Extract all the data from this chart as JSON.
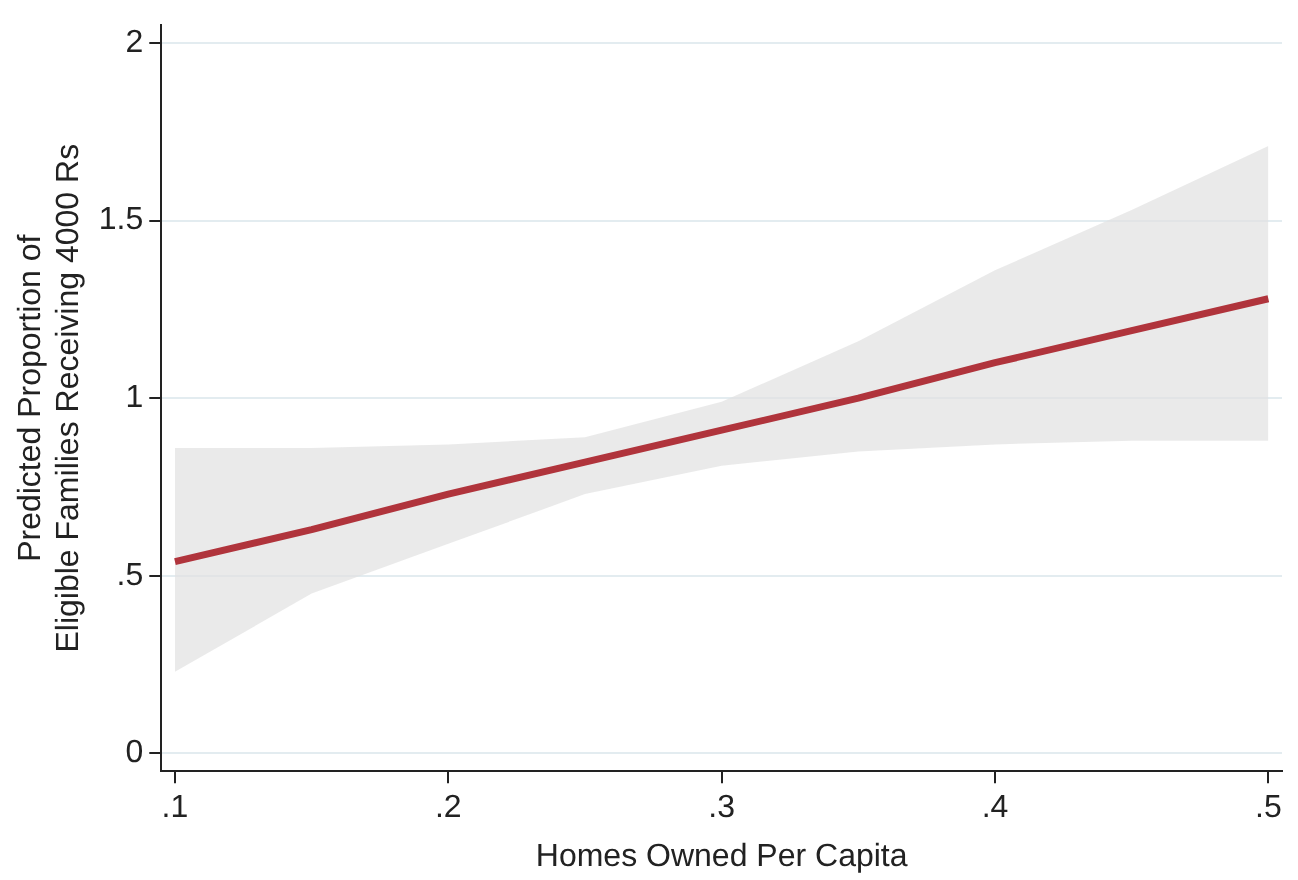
{
  "chart_data": {
    "type": "line",
    "xlabel": "Homes Owned Per Capita",
    "ylabel": "Predicted Proportion of\nEligible Families Receiving 4000 Rs",
    "x": [
      0.1,
      0.15,
      0.2,
      0.25,
      0.3,
      0.35,
      0.4,
      0.45,
      0.5
    ],
    "series": [
      {
        "color": "#b0343c",
        "values": [
          0.54,
          0.63,
          0.73,
          0.82,
          0.91,
          1.0,
          1.1,
          1.19,
          1.28
        ],
        "lower": [
          0.23,
          0.45,
          0.59,
          0.73,
          0.81,
          0.85,
          0.87,
          0.88,
          0.88
        ],
        "upper": [
          0.86,
          0.86,
          0.87,
          0.89,
          0.99,
          1.16,
          1.36,
          1.53,
          1.71
        ]
      }
    ],
    "xlim": [
      0.095,
      0.505
    ],
    "xticks": [
      {
        "value": 0.1,
        "label": ".1"
      },
      {
        "value": 0.2,
        "label": ".2"
      },
      {
        "value": 0.3,
        "label": ".3"
      },
      {
        "value": 0.4,
        "label": ".4"
      },
      {
        "value": 0.5,
        "label": ".5"
      }
    ],
    "ylim": [
      -0.05,
      2.05
    ],
    "yticks": [
      0,
      {
        "value": 0.5,
        "label": ".5"
      },
      1,
      1.5,
      2
    ],
    "grid": "y",
    "legend": false,
    "marker": "none",
    "line_style": "solid"
  }
}
